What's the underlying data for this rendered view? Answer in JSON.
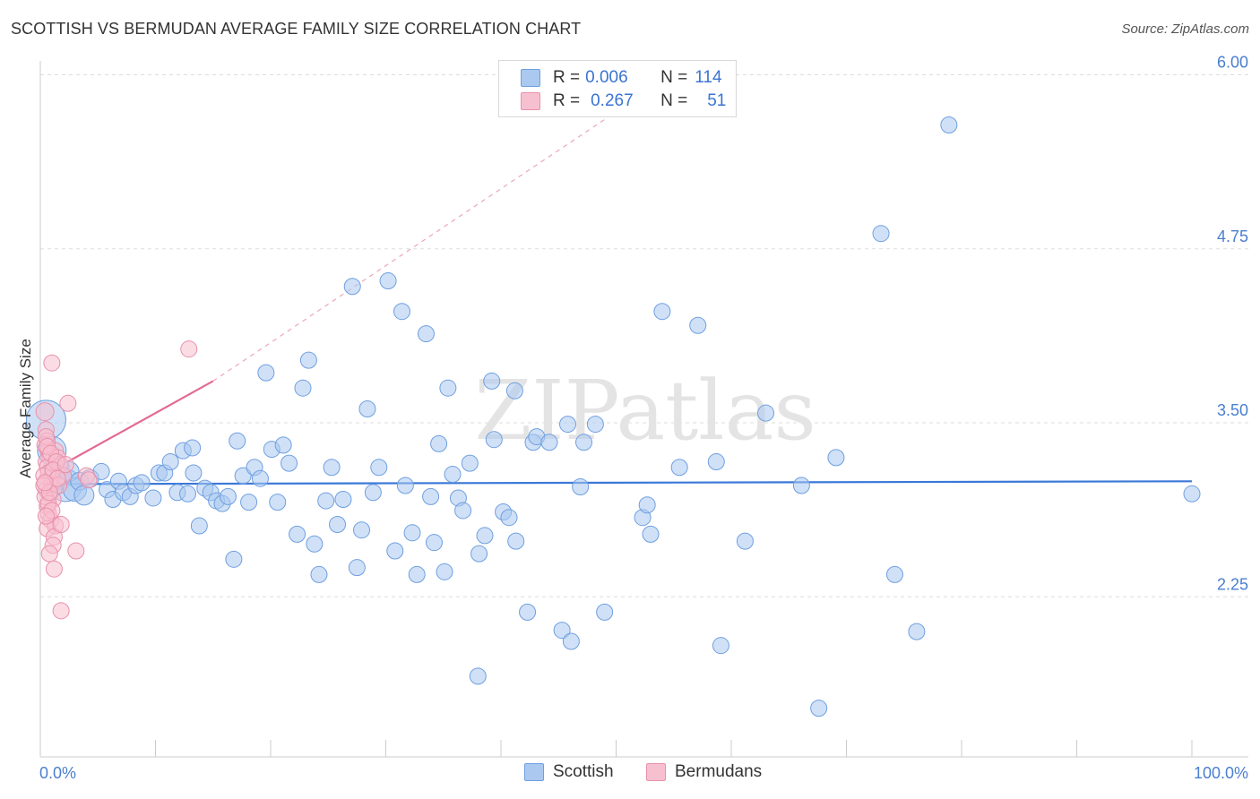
{
  "title": "SCOTTISH VS BERMUDAN AVERAGE FAMILY SIZE CORRELATION CHART",
  "source": "Source: ZipAtlas.com",
  "watermark": "ZIPatlas",
  "legend_top": [
    {
      "r_label": "R = ",
      "r_value": "0.006",
      "n_label": "N = ",
      "n_value": "114",
      "color": "#aac8f0",
      "border": "#6f9fe0"
    },
    {
      "r_label": "R = ",
      "r_value": "0.267",
      "n_label": "N = ",
      "n_value": "51",
      "color": "#f7c0d0",
      "border": "#e890aa"
    }
  ],
  "legend_bottom": [
    {
      "label": "Scottish",
      "color": "#aac8f0",
      "border": "#6f9fe0"
    },
    {
      "label": "Bermudans",
      "color": "#f7c0d0",
      "border": "#e890aa"
    }
  ],
  "chart_data": {
    "type": "scatter",
    "title": "SCOTTISH VS BERMUDAN AVERAGE FAMILY SIZE CORRELATION CHART",
    "xlabel": "",
    "ylabel": "Average Family Size",
    "xlim": [
      0,
      100
    ],
    "ylim": [
      1.1,
      6.1
    ],
    "x_tick_labels": [
      "0.0%",
      "100.0%"
    ],
    "y_ticks": [
      2.25,
      3.5,
      4.75,
      6.0
    ],
    "y_tick_labels": [
      "2.25",
      "3.50",
      "4.75",
      "6.00"
    ],
    "grid": true,
    "legend": "top-center",
    "series": [
      {
        "name": "Scottish",
        "color": "#6f9fe0",
        "fill": "#aac8f0",
        "trend": {
          "x": [
            0.2,
            100
          ],
          "y": [
            3.06,
            3.08
          ],
          "style": "solid"
        },
        "points": [
          [
            0.5,
            3.52,
            22
          ],
          [
            1.0,
            3.3,
            16
          ],
          [
            1.4,
            3.18,
            14
          ],
          [
            1.8,
            3.1,
            12
          ],
          [
            2.2,
            3.05,
            18
          ],
          [
            2.5,
            3.15,
            11
          ],
          [
            3.0,
            3.02,
            13
          ],
          [
            3.4,
            3.08,
            10
          ],
          [
            3.8,
            2.98,
            11
          ],
          [
            4.3,
            3.1,
            10
          ],
          [
            5.3,
            3.15,
            9
          ],
          [
            5.8,
            3.02,
            9
          ],
          [
            6.3,
            2.95,
            9
          ],
          [
            6.8,
            3.08,
            9
          ],
          [
            7.2,
            3.0,
            9
          ],
          [
            7.8,
            2.97,
            9
          ],
          [
            8.3,
            3.05,
            9
          ],
          [
            8.8,
            3.07,
            9
          ],
          [
            9.8,
            2.96,
            9
          ],
          [
            10.3,
            3.14,
            9
          ],
          [
            10.8,
            3.14,
            9
          ],
          [
            11.3,
            3.22,
            9
          ],
          [
            11.9,
            3.0,
            9
          ],
          [
            12.4,
            3.3,
            9
          ],
          [
            12.8,
            2.99,
            9
          ],
          [
            13.3,
            3.14,
            9
          ],
          [
            13.8,
            2.76,
            9
          ],
          [
            14.3,
            3.03,
            9
          ],
          [
            14.8,
            3.0,
            9
          ],
          [
            15.3,
            2.94,
            9
          ],
          [
            15.8,
            2.92,
            9
          ],
          [
            16.3,
            2.97,
            9
          ],
          [
            16.8,
            2.52,
            9
          ],
          [
            17.1,
            3.37,
            9
          ],
          [
            17.6,
            3.12,
            9
          ],
          [
            18.1,
            2.93,
            9
          ],
          [
            18.6,
            3.18,
            9
          ],
          [
            19.1,
            3.1,
            9
          ],
          [
            19.6,
            3.86,
            9
          ],
          [
            20.1,
            3.31,
            9
          ],
          [
            20.6,
            2.93,
            9
          ],
          [
            21.1,
            3.34,
            9
          ],
          [
            21.6,
            3.21,
            9
          ],
          [
            22.3,
            2.7,
            9
          ],
          [
            22.8,
            3.75,
            9
          ],
          [
            23.3,
            3.95,
            9
          ],
          [
            23.8,
            2.63,
            9
          ],
          [
            24.2,
            2.41,
            9
          ],
          [
            24.8,
            2.94,
            9
          ],
          [
            25.3,
            3.18,
            9
          ],
          [
            25.8,
            2.77,
            9
          ],
          [
            26.3,
            2.95,
            9
          ],
          [
            27.1,
            4.48,
            9
          ],
          [
            27.5,
            2.46,
            9
          ],
          [
            27.9,
            2.73,
            9
          ],
          [
            28.4,
            3.6,
            9
          ],
          [
            28.9,
            3.0,
            9
          ],
          [
            29.4,
            3.18,
            9
          ],
          [
            30.2,
            4.52,
            9
          ],
          [
            30.8,
            2.58,
            9
          ],
          [
            31.4,
            4.3,
            9
          ],
          [
            31.7,
            3.05,
            9
          ],
          [
            32.3,
            2.71,
            9
          ],
          [
            32.7,
            2.41,
            9
          ],
          [
            33.5,
            4.14,
            9
          ],
          [
            33.9,
            2.97,
            9
          ],
          [
            34.2,
            2.64,
            9
          ],
          [
            34.6,
            3.35,
            9
          ],
          [
            35.1,
            2.43,
            9
          ],
          [
            35.4,
            3.75,
            9
          ],
          [
            35.8,
            3.13,
            9
          ],
          [
            36.3,
            2.96,
            9
          ],
          [
            36.7,
            2.87,
            9
          ],
          [
            37.3,
            3.21,
            9
          ],
          [
            38.1,
            2.56,
            9
          ],
          [
            38.6,
            2.69,
            9
          ],
          [
            39.2,
            3.8,
            9
          ],
          [
            39.4,
            3.38,
            9
          ],
          [
            40.2,
            2.86,
            9
          ],
          [
            40.7,
            2.82,
            9
          ],
          [
            41.2,
            3.73,
            9
          ],
          [
            41.3,
            2.65,
            9
          ],
          [
            42.3,
            2.14,
            9
          ],
          [
            42.8,
            3.36,
            9
          ],
          [
            43.1,
            3.4,
            9
          ],
          [
            44.2,
            3.36,
            9
          ],
          [
            45.3,
            2.01,
            9
          ],
          [
            45.8,
            3.49,
            9
          ],
          [
            46.1,
            1.93,
            9
          ],
          [
            46.9,
            3.04,
            9
          ],
          [
            47.2,
            3.36,
            9
          ],
          [
            48.2,
            3.49,
            9
          ],
          [
            49.0,
            2.14,
            9
          ],
          [
            52.3,
            2.82,
            9
          ],
          [
            52.7,
            2.91,
            9
          ],
          [
            53.0,
            2.7,
            9
          ],
          [
            54.0,
            4.3,
            9
          ],
          [
            55.5,
            3.18,
            9
          ],
          [
            57.1,
            4.2,
            9
          ],
          [
            58.7,
            3.22,
            9
          ],
          [
            59.1,
            1.9,
            9
          ],
          [
            61.2,
            2.65,
            9
          ],
          [
            63.0,
            3.57,
            9
          ],
          [
            66.1,
            3.05,
            9
          ],
          [
            69.1,
            3.25,
            9
          ],
          [
            73.0,
            4.86,
            9
          ],
          [
            74.2,
            2.41,
            9
          ],
          [
            76.1,
            2.0,
            9
          ],
          [
            78.9,
            5.64,
            9
          ],
          [
            100.0,
            2.99,
            9
          ],
          [
            1.2,
            3.03,
            9
          ],
          [
            67.6,
            1.45,
            9
          ],
          [
            38.0,
            1.68,
            9
          ],
          [
            13.2,
            3.32,
            9
          ]
        ]
      },
      {
        "name": "Bermudans",
        "color": "#e890aa",
        "fill": "#f7c0d0",
        "trend": {
          "x": [
            0.2,
            15.0
          ],
          "y": [
            3.12,
            3.8
          ],
          "style": "solid",
          "extended_to": [
            53.0,
            5.9
          ],
          "extended_style": "dashed"
        },
        "points": [
          [
            0.4,
            3.58,
            10
          ],
          [
            0.5,
            3.45,
            9
          ],
          [
            0.6,
            3.37,
            9
          ],
          [
            0.7,
            3.3,
            9
          ],
          [
            0.8,
            3.26,
            9
          ],
          [
            0.5,
            3.22,
            9
          ],
          [
            0.6,
            3.18,
            9
          ],
          [
            0.7,
            3.14,
            9
          ],
          [
            0.9,
            3.1,
            9
          ],
          [
            1.0,
            3.06,
            9
          ],
          [
            0.5,
            3.02,
            9
          ],
          [
            0.8,
            2.98,
            9
          ],
          [
            1.1,
            2.95,
            9
          ],
          [
            0.6,
            2.9,
            9
          ],
          [
            0.7,
            2.85,
            9
          ],
          [
            0.9,
            2.8,
            9
          ],
          [
            1.3,
            2.76,
            9
          ],
          [
            0.6,
            2.74,
            9
          ],
          [
            1.2,
            2.68,
            9
          ],
          [
            1.1,
            2.62,
            9
          ],
          [
            0.8,
            2.56,
            9
          ],
          [
            1.2,
            2.45,
            9
          ],
          [
            1.8,
            2.77,
            9
          ],
          [
            3.1,
            2.58,
            9
          ],
          [
            1.0,
            3.93,
            9
          ],
          [
            2.4,
            3.64,
            9
          ],
          [
            1.3,
            3.3,
            9
          ],
          [
            1.5,
            3.25,
            9
          ],
          [
            1.7,
            3.2,
            9
          ],
          [
            0.4,
            3.34,
            9
          ],
          [
            0.3,
            3.12,
            9
          ],
          [
            0.4,
            2.97,
            9
          ],
          [
            2.0,
            3.12,
            9
          ],
          [
            1.6,
            3.05,
            9
          ],
          [
            4.0,
            3.12,
            9
          ],
          [
            4.2,
            3.09,
            9
          ],
          [
            12.9,
            4.03,
            9
          ],
          [
            1.8,
            2.15,
            9
          ],
          [
            0.5,
            3.4,
            9
          ],
          [
            0.6,
            3.33,
            9
          ],
          [
            0.9,
            3.28,
            9
          ],
          [
            1.4,
            3.22,
            9
          ],
          [
            0.3,
            3.05,
            9
          ],
          [
            0.7,
            2.92,
            9
          ],
          [
            1.0,
            2.87,
            9
          ],
          [
            0.5,
            2.83,
            9
          ],
          [
            0.8,
            3.0,
            9
          ],
          [
            1.1,
            3.16,
            9
          ],
          [
            1.5,
            3.1,
            9
          ],
          [
            0.4,
            3.07,
            9
          ],
          [
            2.2,
            3.2,
            9
          ]
        ]
      }
    ]
  }
}
